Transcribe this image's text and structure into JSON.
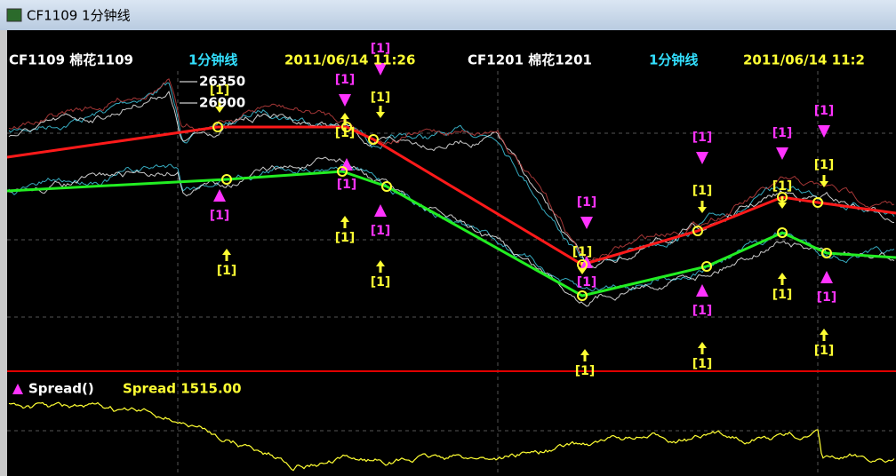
{
  "window": {
    "title": "CF1109 1分钟线"
  },
  "header": {
    "left_symbol": "CF1109 棉花1109",
    "left_period": "1分钟线",
    "left_time": "2011/06/14 11:26",
    "right_symbol": "CF1201 棉花1201",
    "right_period": "1分钟线",
    "right_time": "2011/06/14 11:2"
  },
  "price_labels": [
    "26350",
    "26900"
  ],
  "yellow_markers": [
    "[1]",
    "[1]",
    "[1]",
    "[1]",
    "[1]",
    "[1]",
    "[1]",
    "[1]",
    "[1]",
    "[1]",
    "[1]",
    "[1]",
    "[1]",
    "[1]"
  ],
  "magenta_markers": [
    "[1]",
    "[1]",
    "[1]",
    "[1]",
    "[1]",
    "[1]",
    "[1]",
    "[1]",
    "[1]",
    "[1]",
    "[1]",
    "[1]"
  ],
  "indicator": {
    "name": "Spread()",
    "label": "Spread 1515.00"
  }
}
